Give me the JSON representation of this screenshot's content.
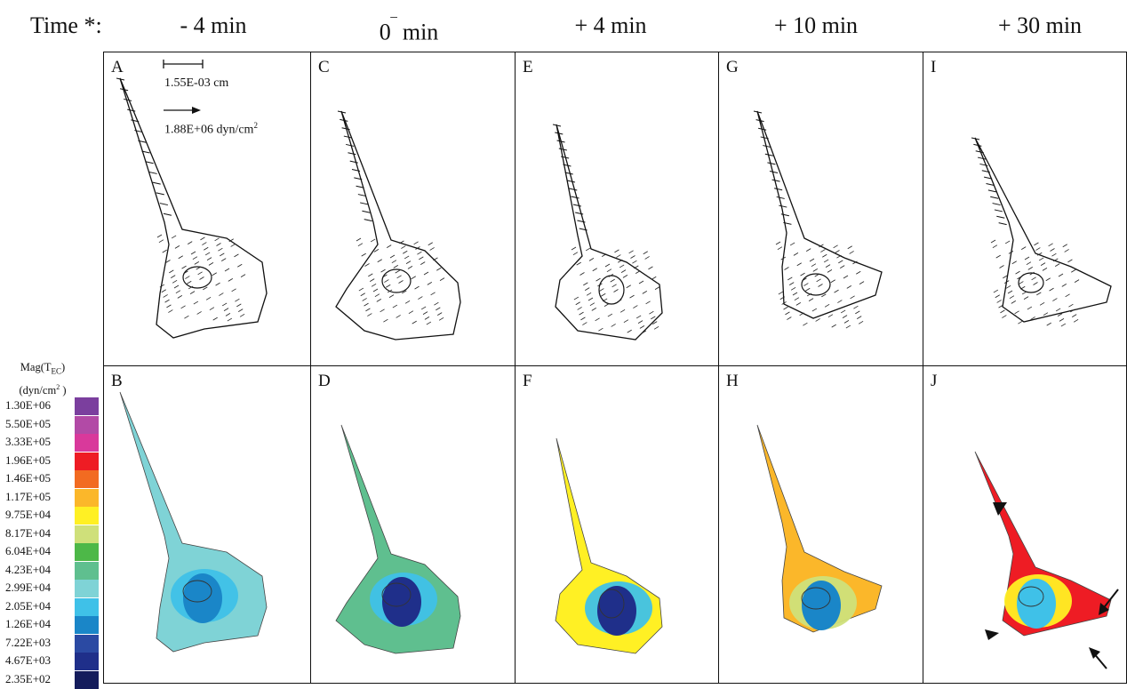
{
  "header": {
    "row_label": "Time *:",
    "times": [
      "- 4 min",
      "0",
      "+ 4 min",
      "+ 10 min",
      "+ 30 min"
    ],
    "time_1_suffix": "min"
  },
  "panels_top": [
    "A",
    "C",
    "E",
    "G",
    "I"
  ],
  "panels_bottom": [
    "B",
    "D",
    "F",
    "H",
    "J"
  ],
  "scale": {
    "length_value": "1.55E-03 cm",
    "force_value_prefix": "1.88E+06 dyn/cm",
    "force_value_sup": "2"
  },
  "legend": {
    "title_line1": "Mag(T",
    "title_sub": "EC",
    "title_close": ")",
    "unit_prefix": "(dyn/cm",
    "unit_sup": "2",
    "unit_close": " )",
    "entries": [
      {
        "label": "1.30E+06",
        "color": "#7b3f9e"
      },
      {
        "label": "5.50E+05",
        "color": "#b24aa6"
      },
      {
        "label": "3.33E+05",
        "color": "#d9399b"
      },
      {
        "label": "1.96E+05",
        "color": "#ee1c24"
      },
      {
        "label": "1.46E+05",
        "color": "#f26b21"
      },
      {
        "label": "1.17E+05",
        "color": "#fbb72a"
      },
      {
        "label": "9.75E+04",
        "color": "#fff024"
      },
      {
        "label": "8.17E+04",
        "color": "#cfe07a"
      },
      {
        "label": "6.04E+04",
        "color": "#4db848"
      },
      {
        "label": "4.23E+04",
        "color": "#5fbf8f"
      },
      {
        "label": "2.99E+04",
        "color": "#7fd3d6"
      },
      {
        "label": "2.05E+04",
        "color": "#3fc1e8"
      },
      {
        "label": "1.26E+04",
        "color": "#1a86c8"
      },
      {
        "label": "7.22E+03",
        "color": "#2b4aa3"
      },
      {
        "label": "4.67E+03",
        "color": "#1f2f8a"
      },
      {
        "label": "2.35E+02",
        "color": "#141c5c"
      }
    ]
  }
}
